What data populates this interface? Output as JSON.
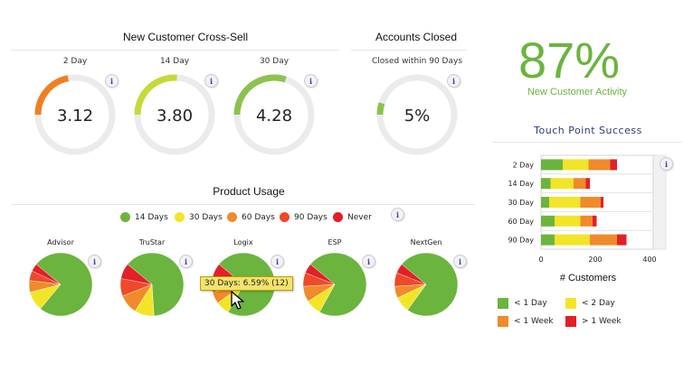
{
  "cross_sell": {
    "title": "New Customer Cross-Sell",
    "info_glyph": "i",
    "gauges": [
      {
        "label": "2 Day",
        "value": "3.12",
        "fraction": 0.22,
        "color": "#f07f22"
      },
      {
        "label": "14 Day",
        "value": "3.80",
        "fraction": 0.26,
        "color": "#c6d93a"
      },
      {
        "label": "30 Day",
        "value": "4.28",
        "fraction": 0.3,
        "color": "#8cc24e"
      }
    ]
  },
  "accounts_closed": {
    "title": "Accounts Closed",
    "subtitle": "Closed within 90 Days",
    "value": "5%",
    "fraction": 0.05,
    "color": "#8cc24e",
    "info_glyph": "i"
  },
  "activity": {
    "value": "87%",
    "label": "New Customer Activity"
  },
  "product_usage": {
    "title": "Product Usage",
    "info_glyph": "i",
    "legend": [
      {
        "label": "14 Days",
        "color": "#6bb43e"
      },
      {
        "label": "30 Days",
        "color": "#f2e528"
      },
      {
        "label": "60 Days",
        "color": "#f08a2b"
      },
      {
        "label": "90 Days",
        "color": "#ee4a2a"
      },
      {
        "label": "Never",
        "color": "#e41f26"
      }
    ],
    "pies": [
      {
        "label": "Advisor",
        "values": [
          75,
          10,
          6,
          5,
          4
        ]
      },
      {
        "label": "TruStar",
        "values": [
          63,
          10,
          10,
          9,
          8
        ]
      },
      {
        "label": "Logix",
        "values": [
          72,
          7,
          6,
          8,
          7
        ]
      },
      {
        "label": "ESP",
        "values": [
          72,
          8,
          8,
          7,
          5
        ]
      },
      {
        "label": "NextGen",
        "values": [
          74,
          8,
          6,
          7,
          5
        ]
      }
    ],
    "tooltip": "30 Days: 6.59% (12)"
  },
  "chart_data": {
    "type": "bar",
    "orientation": "horizontal",
    "stacked": true,
    "title": "Touch Point Success",
    "xlabel": "# Customers",
    "ylabel": "",
    "xlim": [
      0,
      400
    ],
    "xticks": [
      "0",
      "200",
      "400"
    ],
    "categories": [
      "2 Day",
      "14 Day",
      "30 Day",
      "60 Day",
      "90 Day"
    ],
    "series": [
      {
        "name": "< 1 Day",
        "color": "#6bb43e",
        "values": [
          80,
          35,
          30,
          50,
          50
        ]
      },
      {
        "name": "< 2 Day",
        "color": "#f2e528",
        "values": [
          95,
          85,
          115,
          95,
          130
        ]
      },
      {
        "name": "< 1 Week",
        "color": "#f08a2b",
        "values": [
          80,
          45,
          75,
          45,
          100
        ]
      },
      {
        "name": "> 1 Week",
        "color": "#e41f26",
        "values": [
          25,
          15,
          10,
          15,
          35
        ]
      }
    ]
  }
}
